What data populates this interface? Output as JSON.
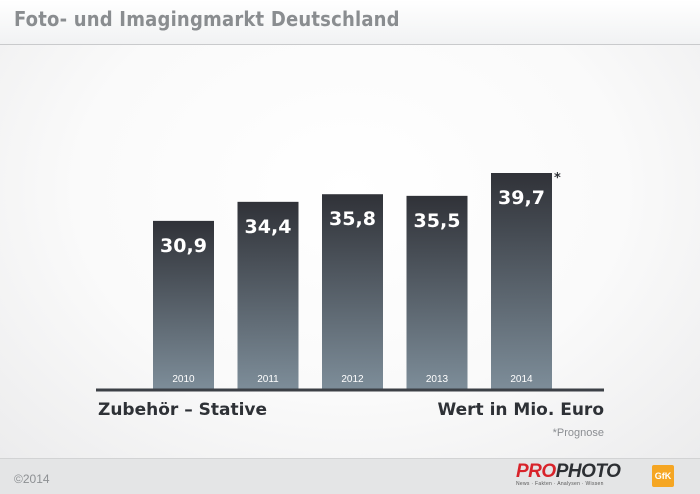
{
  "header": {
    "title": "Foto- und Imagingmarkt Deutschland"
  },
  "chart_data": {
    "type": "bar",
    "categories": [
      "2010",
      "2011",
      "2012",
      "2013",
      "2014"
    ],
    "values": [
      30.9,
      34.4,
      35.8,
      35.5,
      39.7
    ],
    "value_labels": [
      "30,9",
      "34,4",
      "35,8",
      "35,5",
      "39,7"
    ],
    "ylim": [
      0,
      40
    ],
    "grid": false,
    "xlabel": "Zubehör – Stative",
    "unit_label": "Wert in Mio. Euro",
    "footnote_marker": "*",
    "footnote": "*Prognose",
    "colors": {
      "bar_top": "#303238",
      "bar_bottom": "#7d8d99",
      "axis": "#3c4046"
    }
  },
  "footer": {
    "copyright": "©2014",
    "logo_pro": "PRO",
    "logo_photo": "PHOTO",
    "logo_tagline": "News · Fakten · Analysen · Wissen",
    "partner_logo": "GfK"
  }
}
